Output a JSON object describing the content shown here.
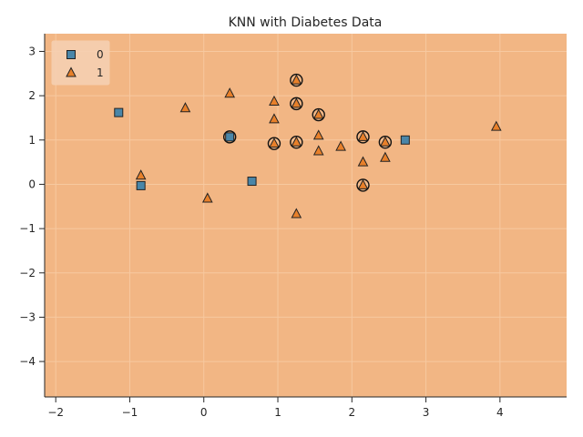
{
  "chart_data": {
    "type": "scatter",
    "title": "KNN with Diabetes Data",
    "xlabel": "",
    "ylabel": "",
    "xlim": [
      -2.15,
      4.9
    ],
    "ylim": [
      -4.8,
      3.4
    ],
    "xticks": [
      -2,
      -1,
      0,
      1,
      2,
      3,
      4
    ],
    "yticks": [
      -4,
      -3,
      -2,
      -1,
      0,
      1,
      2,
      3
    ],
    "xtick_labels": [
      "−2",
      "−1",
      "0",
      "1",
      "2",
      "3",
      "4"
    ],
    "ytick_labels": [
      "−4",
      "−3",
      "−2",
      "−1",
      "0",
      "1",
      "2",
      "3"
    ],
    "grid": true,
    "background_region_color": "#f2b684",
    "legend_position": "top-left",
    "series": [
      {
        "name": "0",
        "marker": "square",
        "color": "#4a86a8",
        "points": [
          {
            "x": -1.15,
            "y": 1.62
          },
          {
            "x": -0.85,
            "y": -0.03
          },
          {
            "x": 0.35,
            "y": 1.07
          },
          {
            "x": 0.65,
            "y": 0.07
          },
          {
            "x": 2.72,
            "y": 1.0
          }
        ]
      },
      {
        "name": "1",
        "marker": "triangle",
        "color": "#e8802a",
        "points": [
          {
            "x": -0.85,
            "y": 0.2
          },
          {
            "x": -0.25,
            "y": 1.72
          },
          {
            "x": 0.05,
            "y": -0.32
          },
          {
            "x": 0.35,
            "y": 2.05
          },
          {
            "x": 0.95,
            "y": 1.87
          },
          {
            "x": 0.95,
            "y": 1.47
          },
          {
            "x": 0.95,
            "y": 0.92
          },
          {
            "x": 1.25,
            "y": 2.35
          },
          {
            "x": 1.25,
            "y": 1.82
          },
          {
            "x": 1.25,
            "y": 0.95
          },
          {
            "x": 1.25,
            "y": -0.67
          },
          {
            "x": 1.55,
            "y": 1.57
          },
          {
            "x": 1.55,
            "y": 1.1
          },
          {
            "x": 1.55,
            "y": 0.75
          },
          {
            "x": 1.85,
            "y": 0.85
          },
          {
            "x": 2.15,
            "y": 1.07
          },
          {
            "x": 2.15,
            "y": 0.5
          },
          {
            "x": 2.15,
            "y": -0.02
          },
          {
            "x": 2.45,
            "y": 0.95
          },
          {
            "x": 2.45,
            "y": 0.6
          },
          {
            "x": 3.95,
            "y": 1.3
          }
        ]
      }
    ],
    "highlighted_points": [
      {
        "x": 0.35,
        "y": 1.07
      },
      {
        "x": 0.95,
        "y": 0.92
      },
      {
        "x": 1.25,
        "y": 2.35
      },
      {
        "x": 1.25,
        "y": 1.82
      },
      {
        "x": 1.25,
        "y": 0.95
      },
      {
        "x": 1.55,
        "y": 1.57
      },
      {
        "x": 2.15,
        "y": 1.07
      },
      {
        "x": 2.15,
        "y": -0.02
      },
      {
        "x": 2.45,
        "y": 0.95
      }
    ]
  }
}
